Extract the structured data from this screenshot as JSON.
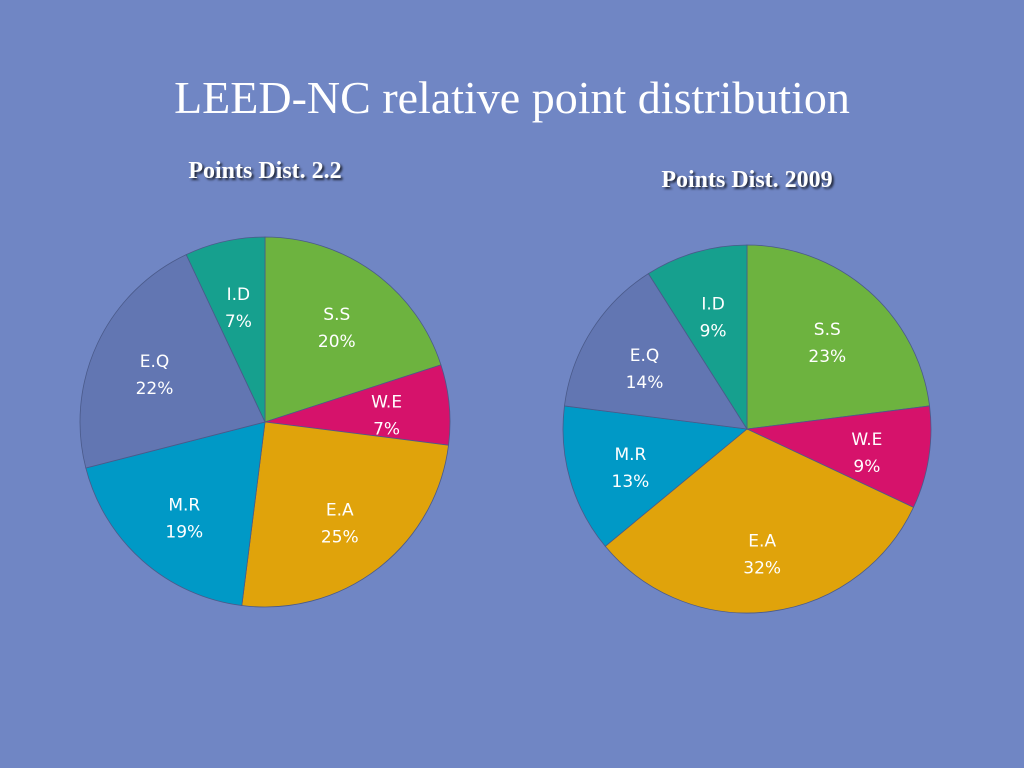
{
  "title": "LEED-NC relative point distribution",
  "chart_data": [
    {
      "type": "pie",
      "title": "Points Dist. 2.2",
      "slices": [
        {
          "label": "S.S",
          "value": 20,
          "display": "20%",
          "color": "#6DB33F"
        },
        {
          "label": "W.E",
          "value": 7,
          "display": "7%",
          "color": "#D6126B"
        },
        {
          "label": "E.A",
          "value": 25,
          "display": "25%",
          "color": "#E0A30B"
        },
        {
          "label": "M.R",
          "value": 19,
          "display": "19%",
          "color": "#0099C6"
        },
        {
          "label": "E.Q",
          "value": 22,
          "display": "22%",
          "color": "#6276B2"
        },
        {
          "label": "I.D",
          "value": 7,
          "display": "7%",
          "color": "#16A08E"
        }
      ]
    },
    {
      "type": "pie",
      "title": "Points Dist. 2009",
      "slices": [
        {
          "label": "S.S",
          "value": 23,
          "display": "23%",
          "color": "#6DB33F"
        },
        {
          "label": "W.E",
          "value": 9,
          "display": "9%",
          "color": "#D6126B"
        },
        {
          "label": "E.A",
          "value": 32,
          "display": "32%",
          "color": "#E0A30B"
        },
        {
          "label": "M.R",
          "value": 13,
          "display": "13%",
          "color": "#0099C6"
        },
        {
          "label": "E.Q",
          "value": 14,
          "display": "14%",
          "color": "#6276B2"
        },
        {
          "label": "I.D",
          "value": 9,
          "display": "9%",
          "color": "#16A08E"
        }
      ]
    }
  ]
}
